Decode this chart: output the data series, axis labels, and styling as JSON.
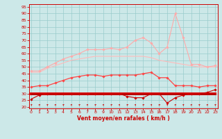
{
  "x": [
    0,
    1,
    2,
    3,
    4,
    5,
    6,
    7,
    8,
    9,
    10,
    11,
    12,
    13,
    14,
    15,
    16,
    17,
    18,
    19,
    20,
    21,
    22,
    23
  ],
  "series": [
    {
      "name": "rafales_max",
      "color": "#ffaaaa",
      "lw": 0.8,
      "marker": "D",
      "ms": 1.8,
      "y": [
        47,
        47,
        50,
        53,
        56,
        58,
        60,
        63,
        63,
        63,
        64,
        63,
        65,
        70,
        72,
        68,
        60,
        65,
        90,
        72,
        52,
        52,
        50,
        51
      ]
    },
    {
      "name": "rafales_smooth",
      "color": "#ffbbbb",
      "lw": 0.8,
      "marker": null,
      "ms": 0,
      "y": [
        46,
        46,
        49,
        51,
        53,
        55,
        56,
        57,
        58,
        58,
        58,
        58,
        58,
        58,
        58,
        57,
        55,
        54,
        53,
        52,
        51,
        50,
        50,
        50
      ]
    },
    {
      "name": "vent_max_marker",
      "color": "#ff4444",
      "lw": 0.9,
      "marker": "D",
      "ms": 1.8,
      "y": [
        35,
        36,
        36,
        38,
        40,
        42,
        43,
        44,
        44,
        43,
        44,
        44,
        44,
        44,
        45,
        46,
        42,
        42,
        36,
        36,
        36,
        35,
        36,
        36
      ]
    },
    {
      "name": "vent_moy_thick",
      "color": "#dd0000",
      "lw": 2.8,
      "marker": null,
      "ms": 0,
      "y": [
        30,
        30,
        30,
        30,
        30,
        30,
        30,
        30,
        30,
        30,
        30,
        30,
        30,
        30,
        30,
        30,
        30,
        30,
        30,
        30,
        30,
        30,
        30,
        30
      ]
    },
    {
      "name": "vent_min_marker",
      "color": "#cc0000",
      "lw": 0.8,
      "marker": "D",
      "ms": 1.8,
      "y": [
        26,
        29,
        30,
        30,
        30,
        30,
        30,
        30,
        30,
        30,
        30,
        30,
        28,
        27,
        27,
        30,
        30,
        23,
        27,
        29,
        30,
        30,
        31,
        33
      ]
    },
    {
      "name": "vent_min_line",
      "color": "#990000",
      "lw": 0.8,
      "marker": null,
      "ms": 0,
      "y": [
        30,
        30,
        30,
        30,
        30,
        30,
        30,
        30,
        30,
        30,
        30,
        30,
        30,
        30,
        30,
        30,
        30,
        30,
        30,
        30,
        30,
        30,
        30,
        30
      ]
    }
  ],
  "xlabel": "Vent moyen/en rafales ( km/h )",
  "yticks": [
    20,
    25,
    30,
    35,
    40,
    45,
    50,
    55,
    60,
    65,
    70,
    75,
    80,
    85,
    90,
    95
  ],
  "xticks": [
    0,
    1,
    2,
    3,
    4,
    5,
    6,
    7,
    8,
    9,
    10,
    11,
    12,
    13,
    14,
    15,
    16,
    17,
    18,
    19,
    20,
    21,
    22,
    23
  ],
  "bg_color": "#cce8e8",
  "grid_color": "#99cccc",
  "tick_color": "#cc0000",
  "label_color": "#cc0000",
  "xlim": [
    -0.3,
    23.3
  ],
  "ylim": [
    19,
    97
  ]
}
